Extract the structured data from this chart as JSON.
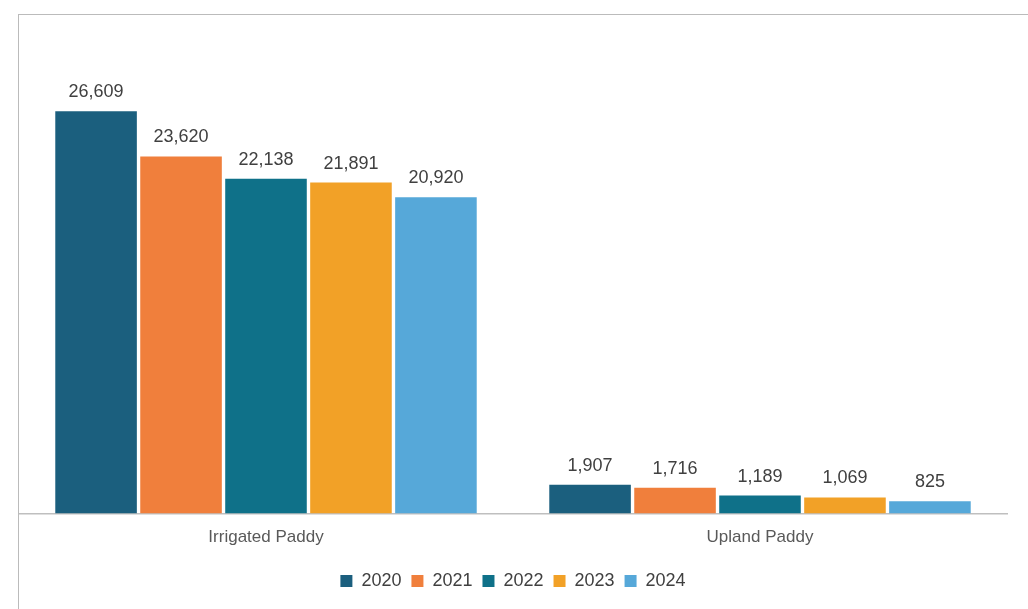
{
  "chart_data": {
    "type": "bar",
    "categories": [
      "Irrigated Paddy",
      "Upland Paddy"
    ],
    "series": [
      {
        "name": "2020",
        "color": "#1b5f7e",
        "values": [
          26609,
          1907
        ],
        "value_labels": [
          "26,609",
          "1,907"
        ]
      },
      {
        "name": "2021",
        "color": "#f07f3c",
        "values": [
          23620,
          1716
        ],
        "value_labels": [
          "23,620",
          "1,716"
        ]
      },
      {
        "name": "2022",
        "color": "#0f7189",
        "values": [
          22138,
          1189
        ],
        "value_labels": [
          "22,138",
          "1,189"
        ]
      },
      {
        "name": "2023",
        "color": "#f2a127",
        "values": [
          21891,
          1069
        ],
        "value_labels": [
          "21,891",
          "1,069"
        ]
      },
      {
        "name": "2024",
        "color": "#56a8d9",
        "values": [
          20920,
          825
        ],
        "value_labels": [
          "20,920",
          "825"
        ]
      }
    ],
    "legend": "bottom",
    "grid": false
  }
}
